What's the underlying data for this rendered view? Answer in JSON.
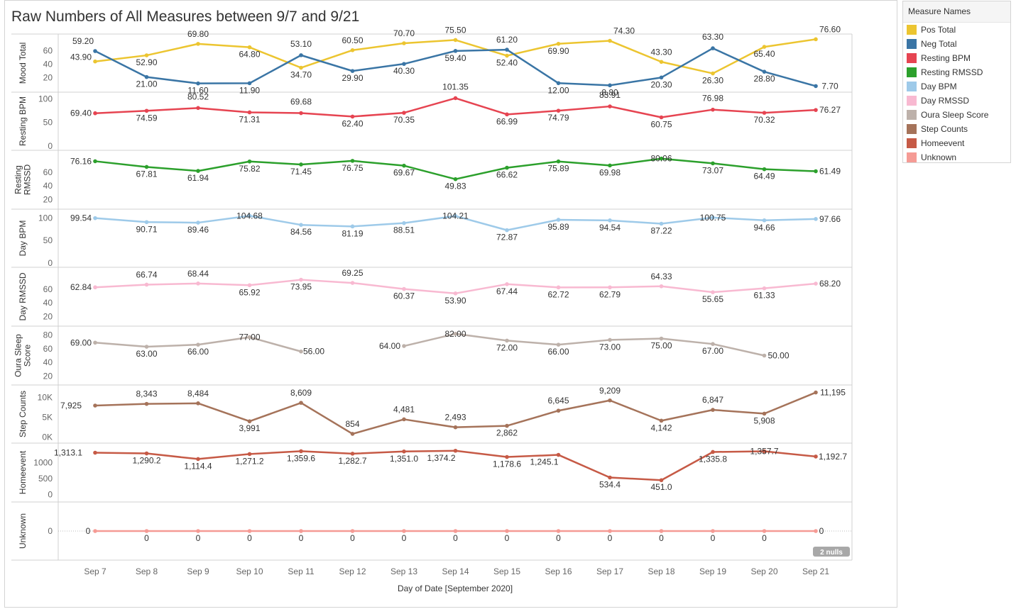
{
  "title": "Raw Numbers of All Measures between 9/7 and 9/21",
  "legend": {
    "title": "Measure Names",
    "items": [
      {
        "name": "Pos Total",
        "color": "#ECC530"
      },
      {
        "name": "Neg Total",
        "color": "#3A75A5"
      },
      {
        "name": "Resting BPM",
        "color": "#E64451"
      },
      {
        "name": "Resting RMSSD",
        "color": "#2CA02C"
      },
      {
        "name": "Day BPM",
        "color": "#9ECAE9"
      },
      {
        "name": "Day RMSSD",
        "color": "#F8B9D1"
      },
      {
        "name": "Oura Sleep Score",
        "color": "#BDB1AA"
      },
      {
        "name": "Step Counts",
        "color": "#A5735A"
      },
      {
        "name": "Homeevent",
        "color": "#C65A46"
      },
      {
        "name": "Unknown",
        "color": "#F59B95"
      }
    ]
  },
  "chart_data": {
    "type": "line",
    "x": [
      "Sep 7",
      "Sep 8",
      "Sep 9",
      "Sep 10",
      "Sep 11",
      "Sep 12",
      "Sep 13",
      "Sep 14",
      "Sep 15",
      "Sep 16",
      "Sep 17",
      "Sep 18",
      "Sep 19",
      "Sep 20",
      "Sep 21"
    ],
    "xlabel": "Day of Date [September 2020]",
    "nulls_badge": "2 nulls",
    "panels": [
      {
        "ylabel": "Mood Total",
        "ylim": [
          5,
          78
        ],
        "ticks": [
          20,
          40,
          60
        ],
        "series": [
          {
            "name": "Pos Total",
            "color": "#ECC530",
            "values": [
              43.9,
              52.9,
              69.8,
              64.8,
              34.7,
              60.5,
              70.7,
              75.5,
              52.4,
              69.9,
              74.3,
              43.3,
              26.3,
              65.4,
              76.6
            ],
            "labels": [
              "43.90",
              "52.90",
              "69.80",
              "64.80",
              "34.70",
              "60.50",
              "70.70",
              "75.50",
              "52.40",
              "69.90",
              "74.30",
              "43.30",
              "26.30",
              "65.40",
              "76.60"
            ]
          },
          {
            "name": "Neg Total",
            "color": "#3A75A5",
            "values": [
              59.2,
              21.0,
              11.6,
              11.9,
              53.1,
              29.9,
              40.3,
              59.4,
              61.2,
              12.0,
              8.8,
              20.3,
              63.3,
              28.8,
              7.7
            ],
            "labels": [
              "59.20",
              "21.00",
              "11.60",
              "11.90",
              "53.10",
              "29.90",
              "40.30",
              "59.40",
              "61.20",
              "12.00",
              "8.80",
              "20.30",
              "63.30",
              "28.80",
              "7.70"
            ]
          }
        ]
      },
      {
        "ylabel": "Resting BPM",
        "ylim": [
          0,
          105
        ],
        "ticks": [
          0,
          50,
          100
        ],
        "series": [
          {
            "name": "Resting BPM",
            "color": "#E64451",
            "values": [
              69.4,
              74.59,
              80.52,
              71.31,
              69.68,
              62.4,
              70.35,
              101.35,
              66.99,
              74.79,
              83.91,
              60.75,
              76.98,
              70.32,
              76.27
            ],
            "labels": [
              "69.40",
              "74.59",
              "80.52",
              "71.31",
              "69.68",
              "62.40",
              "70.35",
              "101.35",
              "66.99",
              "74.79",
              "83.91",
              "60.75",
              "76.98",
              "70.32",
              "76.27"
            ]
          }
        ]
      },
      {
        "ylabel": "Resting RMSSD",
        "ylim": [
          12,
          86
        ],
        "ticks": [
          20,
          40,
          60
        ],
        "series": [
          {
            "name": "Resting RMSSD",
            "color": "#2CA02C",
            "values": [
              76.16,
              67.81,
              61.94,
              75.82,
              71.45,
              76.75,
              69.67,
              49.83,
              66.62,
              75.89,
              69.98,
              80.06,
              73.07,
              64.49,
              61.49
            ],
            "labels": [
              "76.16",
              "67.81",
              "61.94",
              "75.82",
              "71.45",
              "76.75",
              "69.67",
              "49.83",
              "66.62",
              "75.89",
              "69.98",
              "80.06",
              "73.07",
              "64.49",
              "61.49"
            ]
          }
        ]
      },
      {
        "ylabel": "Day BPM",
        "ylim": [
          0,
          110
        ],
        "ticks": [
          0,
          50,
          100
        ],
        "series": [
          {
            "name": "Day BPM",
            "color": "#9ECAE9",
            "values": [
              99.54,
              90.71,
              89.46,
              104.68,
              84.56,
              81.19,
              88.51,
              104.21,
              72.87,
              95.89,
              94.54,
              87.22,
              100.75,
              94.66,
              97.66
            ],
            "labels": [
              "99.54",
              "90.71",
              "89.46",
              "104.68",
              "84.56",
              "81.19",
              "88.51",
              "104.21",
              "72.87",
              "95.89",
              "94.54",
              "87.22",
              "100.75",
              "94.66",
              "97.66"
            ]
          }
        ]
      },
      {
        "ylabel": "Day RMSSD",
        "ylim": [
          12,
          86
        ],
        "ticks": [
          20,
          40,
          60
        ],
        "series": [
          {
            "name": "Day RMSSD",
            "color": "#F8B9D1",
            "values": [
              62.84,
              66.74,
              68.44,
              65.92,
              73.95,
              69.25,
              60.37,
              53.9,
              67.44,
              62.72,
              62.79,
              64.33,
              55.65,
              61.33,
              68.2
            ],
            "labels": [
              "62.84",
              "66.74",
              "68.44",
              "65.92",
              "73.95",
              "69.25",
              "60.37",
              "53.90",
              "67.44",
              "62.72",
              "62.79",
              "64.33",
              "55.65",
              "61.33",
              "68.20"
            ]
          }
        ]
      },
      {
        "ylabel": "Oura Sleep Score",
        "ylim": [
          13,
          87
        ],
        "ticks": [
          20,
          40,
          60,
          80
        ],
        "series": [
          {
            "name": "Oura Sleep Score",
            "color": "#BDB1AA",
            "values": [
              69.0,
              63.0,
              66.0,
              77.0,
              56.0,
              null,
              64.0,
              82.0,
              72.0,
              66.0,
              73.0,
              75.0,
              67.0,
              50.0,
              null
            ],
            "labels": [
              "69.00",
              "63.00",
              "66.00",
              "77.00",
              "56.00",
              "",
              "64.00",
              "82.00",
              "72.00",
              "66.00",
              "73.00",
              "75.00",
              "67.00",
              "50.00",
              ""
            ]
          }
        ]
      },
      {
        "ylabel": "Step Counts",
        "ylim": [
          -400,
          12000
        ],
        "ticks": [
          0,
          5000,
          10000
        ],
        "tick_labels": [
          "0K",
          "5K",
          "10K"
        ],
        "series": [
          {
            "name": "Step Counts",
            "color": "#A5735A",
            "values": [
              7925,
              8343,
              8484,
              3991,
              8609,
              854,
              4481,
              2493,
              2862,
              6645,
              9209,
              4142,
              6847,
              5908,
              11195
            ],
            "labels": [
              "7,925",
              "8,343",
              "8,484",
              "3,991",
              "8,609",
              "854",
              "4,481",
              "2,493",
              "2,862",
              "6,645",
              "9,209",
              "4,142",
              "6,847",
              "5,908",
              "11,195"
            ]
          }
        ]
      },
      {
        "ylabel": "Homeevent",
        "ylim": [
          -100,
          1480
        ],
        "ticks": [
          0,
          500,
          1000
        ],
        "series": [
          {
            "name": "Homeevent",
            "color": "#C65A46",
            "values": [
              1313.1,
              1290.2,
              1114.4,
              1271.2,
              1359.6,
              1282.7,
              1351.0,
              1374.2,
              1178.6,
              1245.1,
              534.4,
              451.0,
              1335.8,
              1357.7,
              1192.7
            ],
            "labels": [
              "1,313.1",
              "1,290.2",
              "1,114.4",
              "1,271.2",
              "1,359.6",
              "1,282.7",
              "1,351.0",
              "1,374.2",
              "1,178.6",
              "1,245.1",
              "534.4",
              "451.0",
              "1,335.8",
              "1,357.7",
              "1,192.7"
            ]
          }
        ]
      },
      {
        "ylabel": "Unknown",
        "ylim": [
          -1,
          1
        ],
        "ticks": [
          0
        ],
        "series": [
          {
            "name": "Unknown",
            "color": "#F59B95",
            "values": [
              0,
              0,
              0,
              0,
              0,
              0,
              0,
              0,
              0,
              0,
              0,
              0,
              0,
              0,
              0
            ],
            "labels": [
              "0",
              "0",
              "0",
              "0",
              "0",
              "0",
              "0",
              "0",
              "0",
              "0",
              "0",
              "0",
              "0",
              "0",
              "0"
            ]
          }
        ]
      }
    ]
  }
}
